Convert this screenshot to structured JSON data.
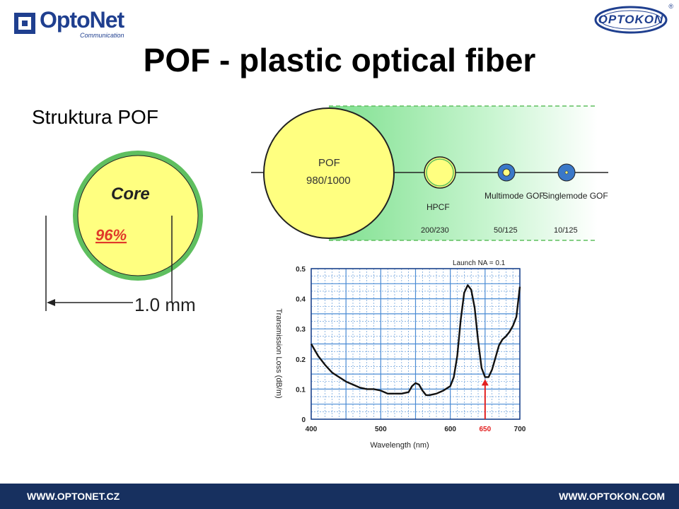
{
  "header": {
    "optonet_logo": {
      "name": "OptoNet",
      "tagline": "Communication"
    },
    "optokon_logo": {
      "name": "OPTOKON",
      "mark": "®"
    }
  },
  "title": "POF - plastic optical fiber",
  "subheading": "Struktura POF",
  "core_diagram": {
    "core_label": "Core",
    "core_percent": "96%",
    "dimension_label": "1.0 mm"
  },
  "fiber_comparison": {
    "fibers": [
      {
        "name": "POF",
        "size": "980/1000"
      },
      {
        "name": "HPCF",
        "size": "200/230"
      },
      {
        "name": "Multimode GOF",
        "size": "50/125"
      },
      {
        "name": "Singlemode GOF",
        "size": "10/125"
      }
    ]
  },
  "chart_data": {
    "type": "line",
    "title": "",
    "annotation": "Launch NA = 0.1",
    "xlabel": "Wavelength (nm)",
    "ylabel": "Transmission Loss (dB/m)",
    "xlim": [
      400,
      700
    ],
    "ylim": [
      0,
      0.5
    ],
    "xticks": [
      "400",
      "500",
      "600",
      "700"
    ],
    "yticks": [
      "0",
      "0.1",
      "0.2",
      "0.3",
      "0.4",
      "0.5"
    ],
    "grid": true,
    "highlight": {
      "x": 650,
      "label": "650",
      "color": "#e32020"
    },
    "series": [
      {
        "x": [
          400,
          410,
          420,
          430,
          440,
          450,
          460,
          470,
          480,
          490,
          500,
          510,
          520,
          530,
          540,
          545,
          550,
          555,
          560,
          565,
          570,
          580,
          590,
          600,
          605,
          610,
          615,
          620,
          625,
          630,
          635,
          640,
          645,
          650,
          655,
          660,
          665,
          670,
          675,
          680,
          685,
          690,
          695,
          700
        ],
        "y": [
          0.25,
          0.21,
          0.18,
          0.155,
          0.14,
          0.125,
          0.115,
          0.105,
          0.1,
          0.1,
          0.095,
          0.085,
          0.085,
          0.085,
          0.09,
          0.11,
          0.12,
          0.115,
          0.095,
          0.08,
          0.08,
          0.085,
          0.095,
          0.11,
          0.14,
          0.21,
          0.33,
          0.42,
          0.445,
          0.43,
          0.37,
          0.26,
          0.17,
          0.14,
          0.14,
          0.165,
          0.205,
          0.245,
          0.265,
          0.275,
          0.29,
          0.31,
          0.34,
          0.44
        ]
      }
    ]
  },
  "footer": {
    "left": "WWW.OPTONET.CZ",
    "right": "WWW.OPTOKON.COM"
  },
  "colors": {
    "fiber_yellow": "#ffff80",
    "core_green": "#5fbf5f",
    "band_green": "#bff5c8",
    "singlemode_blue": "#3a78c8",
    "footer_navy": "#17305f",
    "chart_grid": "#4a8bd4",
    "chart_highlight": "#e32020"
  }
}
